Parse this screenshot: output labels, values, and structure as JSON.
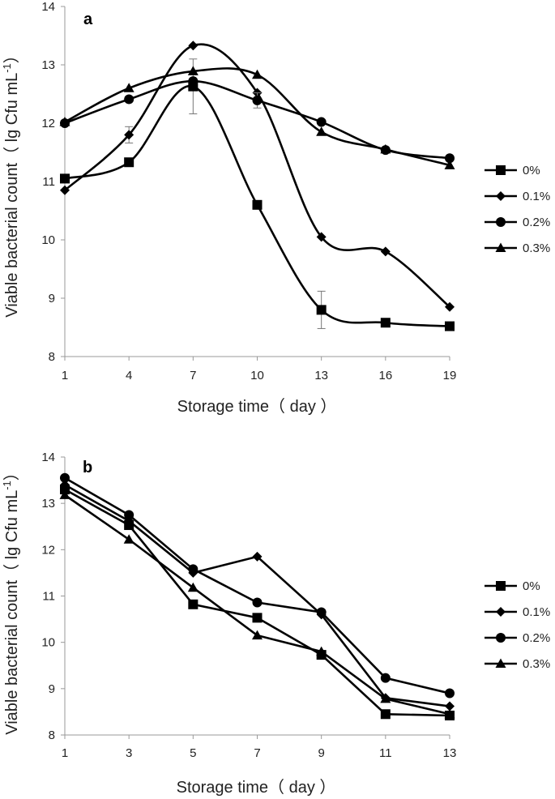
{
  "chart_data": [
    {
      "type": "line",
      "panel": "a",
      "x": [
        1,
        4,
        7,
        10,
        13,
        16,
        19
      ],
      "xlabel": "Storage time（ day ）",
      "ylabel": "Viable bacterial count（ lg Cfu mL",
      "ylabel_sup": "-1",
      "ylabel_end": "）",
      "ylim": [
        8,
        14
      ],
      "yticks": [
        8,
        9,
        10,
        11,
        12,
        13,
        14
      ],
      "smooth": true,
      "series": [
        {
          "name": "0%",
          "marker": "square",
          "values": [
            11.05,
            11.33,
            12.63,
            10.6,
            8.8,
            8.58,
            8.52
          ],
          "errors": [
            0,
            0,
            0.47,
            0,
            0.32,
            0,
            0
          ]
        },
        {
          "name": "0.1%",
          "marker": "diamond",
          "values": [
            10.85,
            11.8,
            13.33,
            12.52,
            10.05,
            9.8,
            8.85
          ],
          "errors": [
            0,
            0.14,
            0,
            0,
            0,
            0,
            0
          ]
        },
        {
          "name": "0.2%",
          "marker": "circle",
          "values": [
            12.0,
            12.41,
            12.72,
            12.39,
            12.02,
            11.54,
            11.4
          ],
          "errors": [
            0,
            0,
            0,
            0.13,
            0,
            0,
            0
          ]
        },
        {
          "name": "0.3%",
          "marker": "triangle",
          "values": [
            12.02,
            12.6,
            12.89,
            12.83,
            11.85,
            11.55,
            11.28
          ],
          "errors": [
            0,
            0,
            0,
            0,
            0,
            0,
            0
          ]
        }
      ]
    },
    {
      "type": "line",
      "panel": "b",
      "x": [
        1,
        3,
        5,
        7,
        9,
        11,
        13
      ],
      "xlabel": "Storage time（ day ）",
      "ylabel": "Viable bacterial count（ lg Cfu mL",
      "ylabel_sup": "-1",
      "ylabel_end": "）",
      "ylim": [
        8,
        14
      ],
      "yticks": [
        8,
        9,
        10,
        11,
        12,
        13,
        14
      ],
      "smooth": false,
      "series": [
        {
          "name": "0%",
          "marker": "square",
          "values": [
            13.3,
            12.53,
            10.82,
            10.53,
            9.73,
            8.45,
            8.42
          ],
          "errors": [
            0,
            0,
            0,
            0,
            0,
            0,
            0
          ]
        },
        {
          "name": "0.1%",
          "marker": "diamond",
          "values": [
            13.4,
            12.62,
            11.5,
            11.85,
            10.6,
            8.8,
            8.62
          ],
          "errors": [
            0,
            0,
            0,
            0,
            0,
            0,
            0
          ]
        },
        {
          "name": "0.2%",
          "marker": "circle",
          "values": [
            13.55,
            12.75,
            11.58,
            10.86,
            10.65,
            9.23,
            8.9
          ],
          "errors": [
            0,
            0,
            0,
            0,
            0,
            0,
            0
          ]
        },
        {
          "name": "0.3%",
          "marker": "triangle",
          "values": [
            13.18,
            12.22,
            11.18,
            10.15,
            9.8,
            8.78,
            8.45
          ],
          "errors": [
            0,
            0,
            0,
            0,
            0,
            0,
            0
          ]
        }
      ]
    }
  ]
}
